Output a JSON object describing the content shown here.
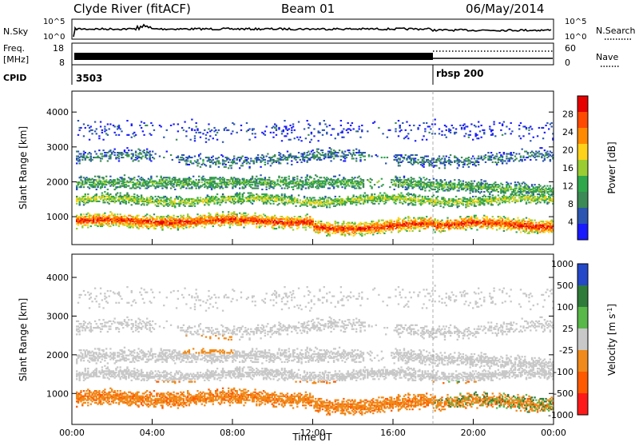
{
  "header": {
    "station": "Clyde River (fitACF)",
    "beam": "Beam 01",
    "date": "06/May/2014"
  },
  "colors": {
    "power_scale": [
      "#1a1aff",
      "#2b55b0",
      "#3c8a55",
      "#2fa84c",
      "#9acd32",
      "#ffd21a",
      "#ff8a00",
      "#ff4a00",
      "#e60000"
    ],
    "velocity_scale": [
      "#2448c8",
      "#2e7b3a",
      "#58b848",
      "#c8c8c8",
      "#f08a1a",
      "#ff5a00",
      "#ff1a1a"
    ]
  },
  "panels": {
    "nsky": {
      "left_label": "N.Sky",
      "right_label": "N.Search",
      "left_ticks": [
        "10^5",
        "10^0"
      ],
      "right_ticks": [
        "10^5",
        "10^0"
      ]
    },
    "freq": {
      "left_label_1": "Freq.",
      "left_label_2": "[MHz]",
      "right_label": "Nave",
      "left_ticks": [
        "18",
        "8"
      ],
      "right_ticks": [
        "60",
        "0"
      ]
    },
    "cpid": {
      "label": "CPID",
      "value_1": "3503",
      "value_2": "rbsp 200"
    }
  },
  "chart_data": [
    {
      "type": "heatmap",
      "name": "Power",
      "ylabel": "Slant Range [km]",
      "ylim": [
        200,
        4600
      ],
      "yticks": [
        1000,
        2000,
        3000,
        4000
      ],
      "xlim": [
        0,
        24
      ],
      "colorbar": {
        "label": "Power [dB]",
        "ticks": [
          4,
          8,
          12,
          16,
          20,
          24,
          28
        ],
        "range": [
          0,
          32
        ]
      }
    },
    {
      "type": "heatmap",
      "name": "Velocity",
      "ylabel": "Slant Range [km]",
      "ylim": [
        200,
        4600
      ],
      "yticks": [
        1000,
        2000,
        3000,
        4000
      ],
      "xlim": [
        0,
        24
      ],
      "xlabel": "Time UT",
      "xtick_labels": [
        "00:00",
        "04:00",
        "08:00",
        "12:00",
        "16:00",
        "20:00",
        "00:00"
      ],
      "colorbar": {
        "label": "Velocity [m s^-1]",
        "ticks": [
          "1000",
          "500",
          "100",
          "25",
          "-25",
          "-100",
          "-500",
          "-1000"
        ]
      }
    }
  ]
}
